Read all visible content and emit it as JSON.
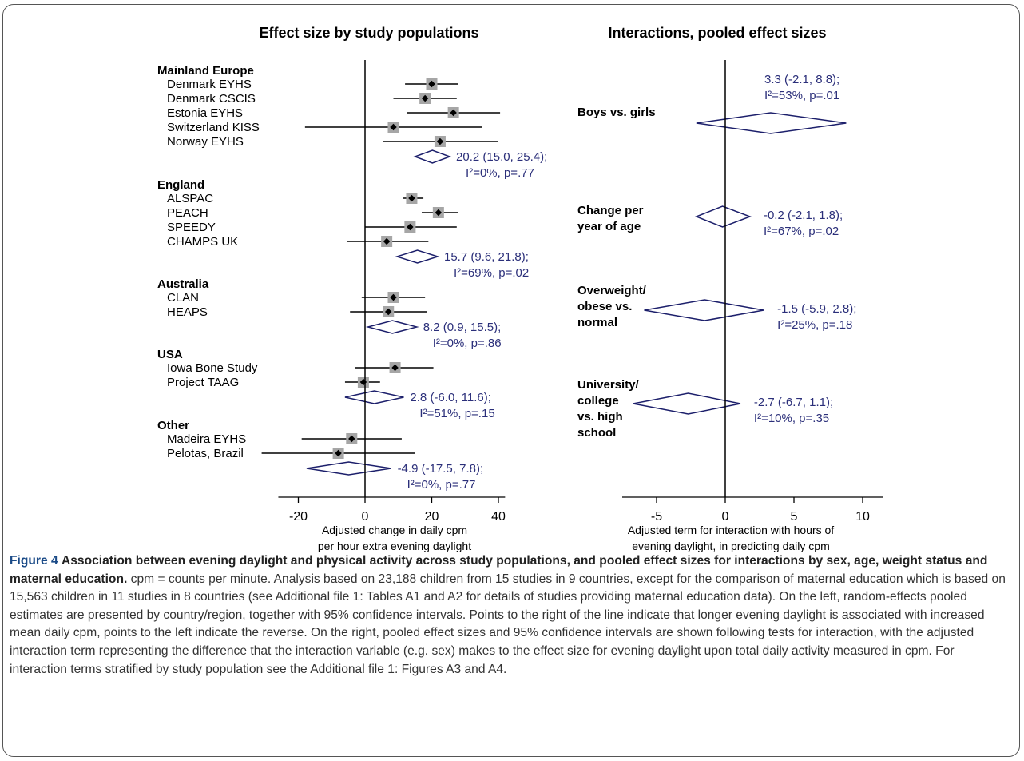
{
  "chart_data": [
    {
      "type": "forest",
      "title": "Effect size by study populations",
      "xlabel": [
        "Adjusted change in daily cpm",
        "per hour extra evening daylight"
      ],
      "xlim": [
        -26,
        42
      ],
      "xticks": [
        -20,
        0,
        20,
        40
      ],
      "groups": [
        {
          "name": "Mainland Europe",
          "studies": [
            {
              "name": "Denmark EYHS",
              "est": 20,
              "lo": 12,
              "hi": 28
            },
            {
              "name": "Denmark CSCIS",
              "est": 18,
              "lo": 8.5,
              "hi": 27.5
            },
            {
              "name": "Estonia EYHS",
              "est": 26.5,
              "lo": 12.5,
              "hi": 40.5
            },
            {
              "name": "Switzerland KISS",
              "est": 8.5,
              "lo": -18,
              "hi": 35
            },
            {
              "name": "Norway EYHS",
              "est": 22.5,
              "lo": 5.5,
              "hi": 40
            }
          ],
          "pooled": {
            "est": 20.2,
            "lo": 15.0,
            "hi": 25.4,
            "label1": "20.2 (15.0, 25.4);",
            "label2": "I²=0%, p=.77"
          }
        },
        {
          "name": "England",
          "studies": [
            {
              "name": "ALSPAC",
              "est": 14,
              "lo": 11.5,
              "hi": 17.5
            },
            {
              "name": "PEACH",
              "est": 22,
              "lo": 17,
              "hi": 28
            },
            {
              "name": "SPEEDY",
              "est": 13.5,
              "lo": 0,
              "hi": 27.5
            },
            {
              "name": "CHAMPS UK",
              "est": 6.5,
              "lo": -5.5,
              "hi": 19
            }
          ],
          "pooled": {
            "est": 15.7,
            "lo": 9.6,
            "hi": 21.8,
            "label1": "15.7 (9.6, 21.8);",
            "label2": "I²=69%, p=.02"
          }
        },
        {
          "name": "Australia",
          "studies": [
            {
              "name": "CLAN",
              "est": 8.5,
              "lo": -1,
              "hi": 18
            },
            {
              "name": "HEAPS",
              "est": 7,
              "lo": -4.5,
              "hi": 18.5
            }
          ],
          "pooled": {
            "est": 8.2,
            "lo": 0.9,
            "hi": 15.5,
            "label1": "8.2 (0.9, 15.5);",
            "label2": "I²=0%, p=.86"
          }
        },
        {
          "name": "USA",
          "studies": [
            {
              "name": "Iowa Bone Study",
              "est": 9,
              "lo": -3,
              "hi": 20.5
            },
            {
              "name": "Project TAAG",
              "est": -0.5,
              "lo": -6,
              "hi": 4.5
            }
          ],
          "pooled": {
            "est": 2.8,
            "lo": -6.0,
            "hi": 11.6,
            "label1": "2.8 (-6.0, 11.6);",
            "label2": "I²=51%, p=.15"
          }
        },
        {
          "name": "Other",
          "studies": [
            {
              "name": "Madeira EYHS",
              "est": -4,
              "lo": -19,
              "hi": 11
            },
            {
              "name": "Pelotas, Brazil",
              "est": -8,
              "lo": -31,
              "hi": 15
            }
          ],
          "pooled": {
            "est": -4.9,
            "lo": -17.5,
            "hi": 7.8,
            "label1": "-4.9 (-17.5, 7.8);",
            "label2": "I²=0%, p=.77"
          }
        }
      ]
    },
    {
      "type": "forest",
      "title": "Interactions, pooled effect sizes",
      "xlabel": [
        "Adjusted term for interaction with hours of",
        "evening  daylight, in predicting daily cpm"
      ],
      "xlim": [
        -7.5,
        11.5
      ],
      "xticks": [
        -5,
        0,
        5,
        10
      ],
      "rows": [
        {
          "name": [
            "Boys vs. girls"
          ],
          "est": 3.3,
          "lo": -2.1,
          "hi": 8.8,
          "label1": "3.3 (-2.1, 8.8);",
          "label2": "I²=53%, p=.01"
        },
        {
          "name": [
            "Change per",
            "year of age"
          ],
          "est": -0.2,
          "lo": -2.1,
          "hi": 1.8,
          "label1": "-0.2 (-2.1, 1.8);",
          "label2": "I²=67%, p=.02"
        },
        {
          "name": [
            "Overweight/",
            "obese vs.",
            "normal"
          ],
          "est": -1.5,
          "lo": -5.9,
          "hi": 2.8,
          "label1": "-1.5 (-5.9, 2.8);",
          "label2": "I²=25%, p=.18"
        },
        {
          "name": [
            "University/",
            "college",
            "vs. high",
            "school"
          ],
          "est": -2.7,
          "lo": -6.7,
          "hi": 1.1,
          "label1": "-2.7 (-6.7, 1.1);",
          "label2": "I²=10%, p=.35"
        }
      ]
    }
  ],
  "caption": {
    "label": "Figure 4",
    "title": "Association between evening daylight and physical activity across study populations, and pooled effect sizes for interactions by sex, age, weight status and maternal education.",
    "body": "cpm = counts per minute. Analysis based on 23,188 children from 15 studies in 9 countries, except for the comparison of maternal education which is based on 15,563 children in 11 studies in 8 countries (see Additional file 1: Tables A1 and A2 for details of studies providing maternal education data). On the left, random-effects pooled estimates are presented by country/region, together with 95% confidence intervals. Points to the right of the line indicate that longer evening daylight is associated with increased mean daily cpm, points to the left indicate the reverse. On the right, pooled effect sizes and 95% confidence intervals are shown following tests for interaction, with the adjusted interaction term representing the difference that the interaction variable (e.g. sex) makes to the effect size for evening daylight upon total daily activity measured in cpm. For interaction terms stratified by study population see the Additional file 1: Figures A3 and A4."
  },
  "colors": {
    "label_text": "#000000",
    "pooled_text": "#2b2f7a",
    "diamond": "#1c1f6b",
    "marker_box": "#a6a6a6",
    "caption_label": "#1a4a87"
  }
}
